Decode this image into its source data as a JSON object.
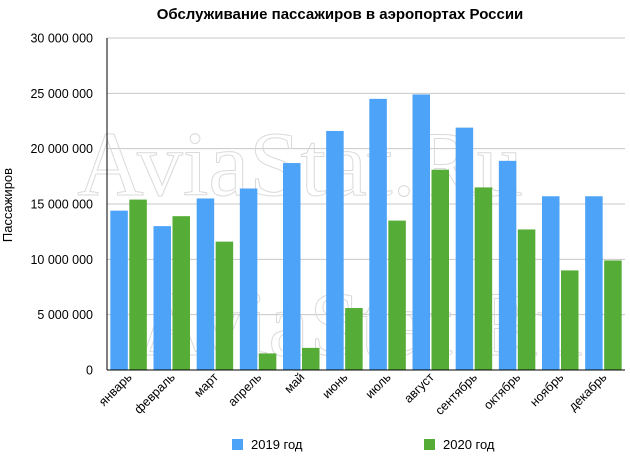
{
  "chart_data": {
    "type": "bar",
    "title": "Обслуживание пассажиров в аэропортах России",
    "ylabel": "Пассажиров",
    "xlabel": "",
    "ylim": [
      0,
      30000000
    ],
    "yticks": [
      0,
      5000000,
      10000000,
      15000000,
      20000000,
      25000000,
      30000000
    ],
    "ytick_labels": [
      "0",
      "5 000 000",
      "10 000 000",
      "15 000 000",
      "20 000 000",
      "25 000 000",
      "30 000 000"
    ],
    "grid": true,
    "legend_position": "bottom",
    "categories": [
      "январь",
      "февраль",
      "март",
      "апрель",
      "май",
      "июнь",
      "июль",
      "август",
      "сентябрь",
      "октябрь",
      "ноябрь",
      "декабрь"
    ],
    "series": [
      {
        "name": "2019 год",
        "color": "#4da3f7",
        "values": [
          14400000,
          13000000,
          15500000,
          16400000,
          18700000,
          21600000,
          24500000,
          24900000,
          21900000,
          18900000,
          15700000,
          15700000
        ]
      },
      {
        "name": "2020 год",
        "color": "#55ad38",
        "values": [
          15400000,
          13900000,
          11600000,
          1500000,
          2000000,
          5600000,
          13500000,
          18100000,
          16500000,
          12700000,
          9000000,
          9900000
        ]
      }
    ]
  },
  "watermark": {
    "text": "AviaStat.Ru"
  }
}
